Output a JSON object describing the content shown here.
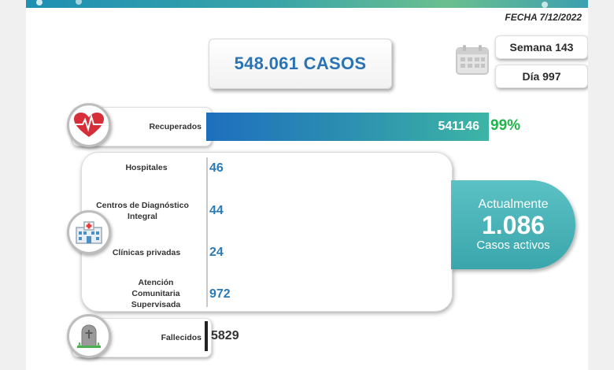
{
  "header": {
    "date": "FECHA 7/12/2022"
  },
  "total_cases": "548.061 CASOS",
  "calendar": {
    "week": "Semana 143",
    "day": "Día 997"
  },
  "recovered": {
    "label": "Recuperados",
    "value": "541146",
    "percent": "99%",
    "fraction": 0.99,
    "icon": "heart-pulse-icon"
  },
  "facilities": [
    {
      "label": "Hospitales",
      "value": "46"
    },
    {
      "label": "Centros de Diagnóstico Integral",
      "value": "44"
    },
    {
      "label": "Clínicas privadas",
      "value": "24"
    },
    {
      "label": "Atención Comunitaria Supervisada",
      "value": "972"
    }
  ],
  "active_cases": {
    "line1": "Actualmente",
    "value": "1.086",
    "line3": "Casos activos"
  },
  "deaths": {
    "label": "Fallecidos",
    "value": "5829",
    "icon": "tombstone-icon"
  },
  "colors": {
    "accent_blue": "#2a74b6",
    "green": "#22b34c",
    "teal": "#3aa6ac"
  }
}
